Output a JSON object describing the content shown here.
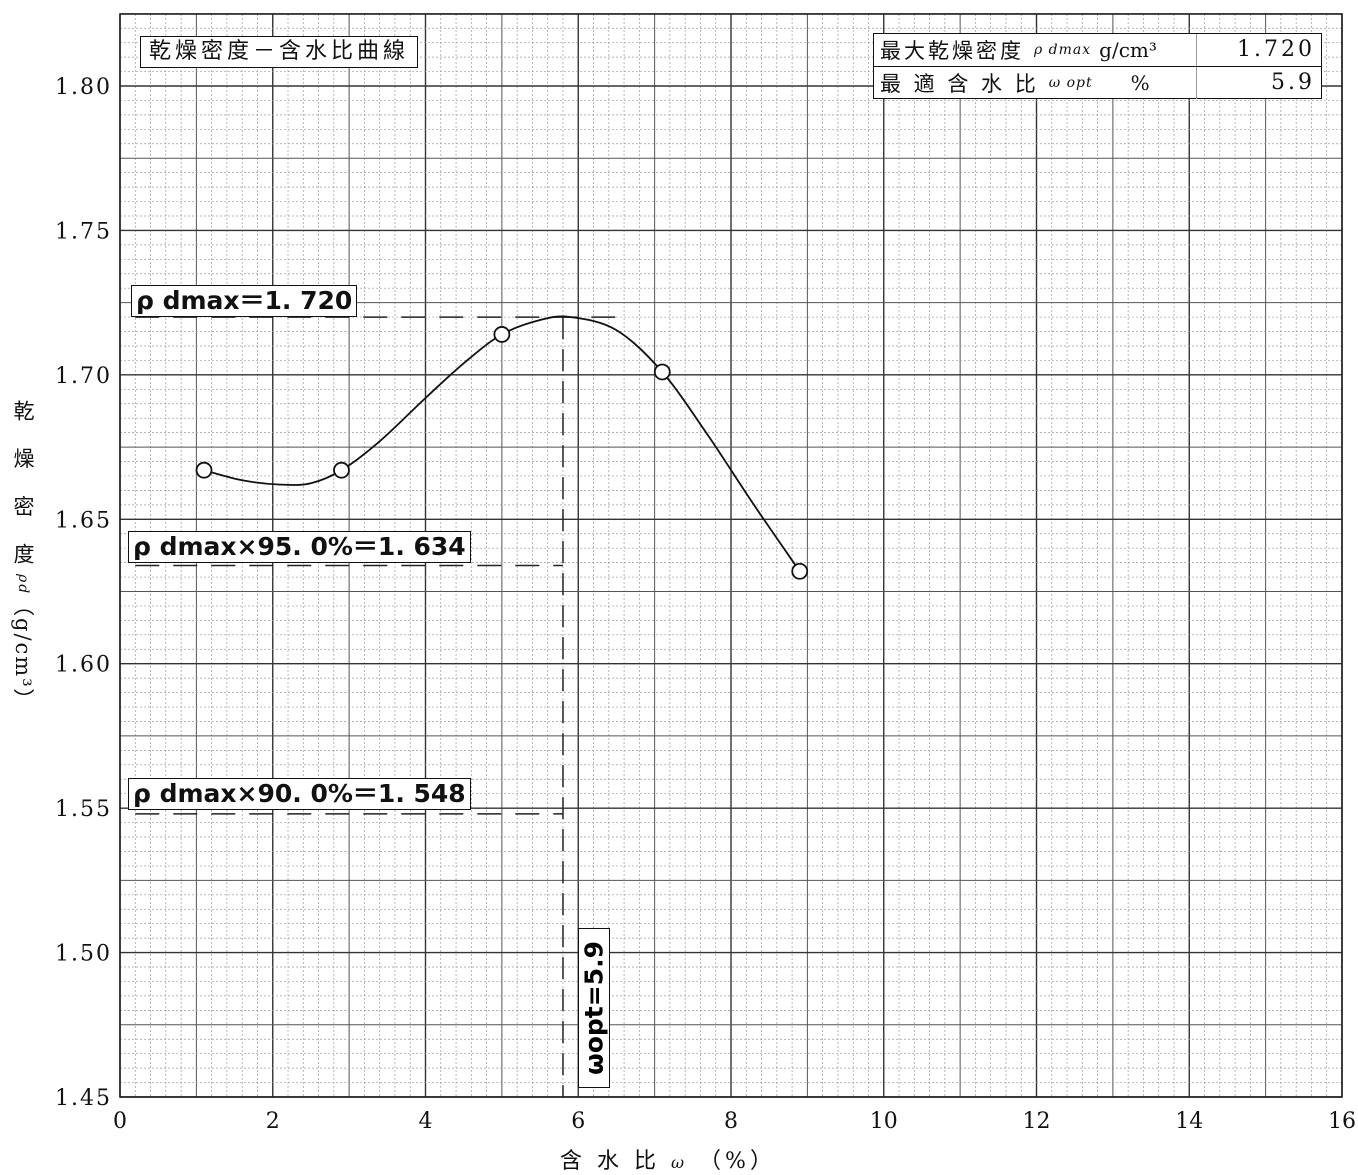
{
  "chart_data": {
    "type": "line",
    "title": "乾燥密度－含水比曲線",
    "xlabel": "含 水 比",
    "xlabel_symbol": "ω",
    "xlabel_unit": "（%）",
    "ylabel": "乾 燥 密 度",
    "ylabel_symbol": "ρd",
    "ylabel_unit": "（g/cm³）",
    "xlim": [
      0,
      16
    ],
    "ylim": [
      1.45,
      1.8
    ],
    "x_ticks": [
      "0",
      "2",
      "4",
      "6",
      "8",
      "10",
      "12",
      "14",
      "16"
    ],
    "y_ticks": [
      "1.45",
      "1.50",
      "1.55",
      "1.60",
      "1.65",
      "1.70",
      "1.75",
      "1.80"
    ],
    "grid": true,
    "series": [
      {
        "points": [
          {
            "x": 1.1,
            "y": 1.667
          },
          {
            "x": 2.9,
            "y": 1.667
          },
          {
            "x": 5.0,
            "y": 1.714
          },
          {
            "x": 7.1,
            "y": 1.701
          },
          {
            "x": 8.9,
            "y": 1.632
          }
        ],
        "curve": [
          {
            "x": 1.1,
            "y": 1.667
          },
          {
            "x": 1.6,
            "y": 1.6635
          },
          {
            "x": 2.1,
            "y": 1.662
          },
          {
            "x": 2.5,
            "y": 1.6625
          },
          {
            "x": 2.9,
            "y": 1.667
          },
          {
            "x": 3.4,
            "y": 1.677
          },
          {
            "x": 4.0,
            "y": 1.692
          },
          {
            "x": 4.5,
            "y": 1.704
          },
          {
            "x": 5.0,
            "y": 1.714
          },
          {
            "x": 5.5,
            "y": 1.719
          },
          {
            "x": 5.9,
            "y": 1.72
          },
          {
            "x": 6.5,
            "y": 1.7155
          },
          {
            "x": 7.1,
            "y": 1.701
          },
          {
            "x": 7.7,
            "y": 1.679
          },
          {
            "x": 8.3,
            "y": 1.655
          },
          {
            "x": 8.9,
            "y": 1.632
          }
        ]
      }
    ],
    "reference_lines": [
      {
        "label": "ρ dmax＝1. 720",
        "y": 1.72,
        "x_to": 6.6
      },
      {
        "label": "ρ dmax×95. 0%＝1. 634",
        "y": 1.634,
        "x_to": 5.8
      },
      {
        "label": "ρ dmax×90. 0%＝1. 548",
        "y": 1.548,
        "x_to": 5.8
      }
    ],
    "vertical_line": {
      "label": "ωopt=5.9",
      "x": 5.8,
      "y_from": 1.72
    }
  },
  "info": {
    "rows": [
      {
        "label": "最大乾燥密度",
        "symbol": "ρ dmax",
        "unit": "g/cm³",
        "value": "1.720"
      },
      {
        "label": "最 適 含 水 比",
        "symbol": "ω opt",
        "unit": "%",
        "value": "5.9"
      }
    ]
  }
}
